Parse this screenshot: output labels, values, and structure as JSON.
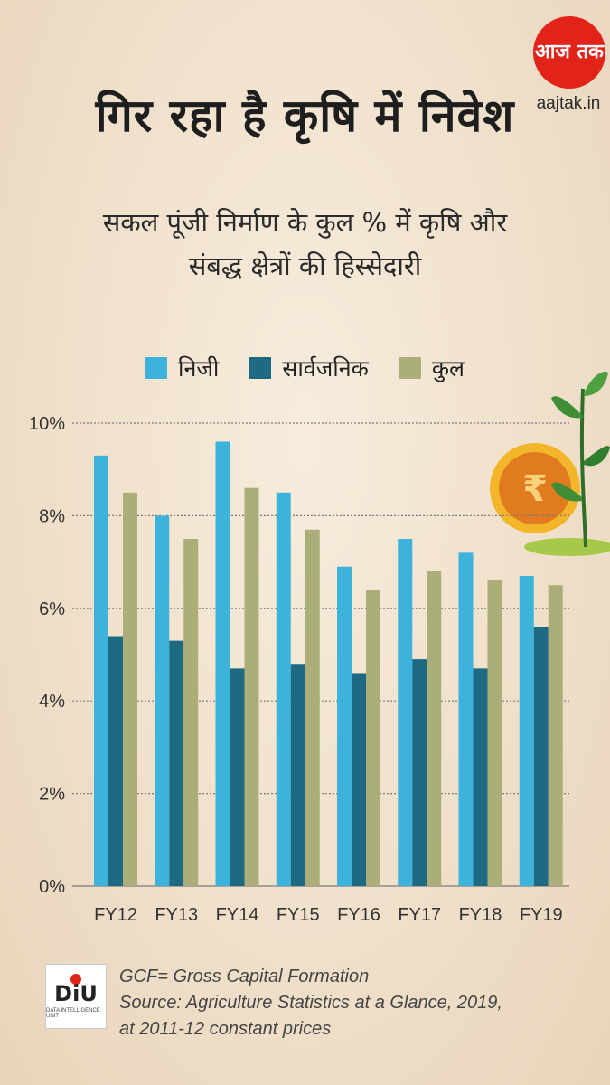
{
  "logo": {
    "brand": "आज तक",
    "url": "aajtak.in"
  },
  "title": "गिर रहा है कृषि में निवेश",
  "subtitle_lines": [
    "सकल पूंजी निर्माण के कुल % में कृषि और",
    "संबद्ध क्षेत्रों की हिस्सेदारी"
  ],
  "legend": [
    {
      "label": "निजी",
      "color": "#3db3dc"
    },
    {
      "label": "सार्वजनिक",
      "color": "#1e6a82"
    },
    {
      "label": "कुल",
      "color": "#abae78"
    }
  ],
  "chart_data": {
    "type": "bar",
    "categories": [
      "FY12",
      "FY13",
      "FY14",
      "FY15",
      "FY16",
      "FY17",
      "FY18",
      "FY19"
    ],
    "series": [
      {
        "name": "निजी",
        "color": "#3db3dc",
        "values": [
          9.3,
          8.0,
          9.6,
          8.5,
          6.9,
          7.5,
          7.2,
          6.7
        ]
      },
      {
        "name": "सार्वजनिक",
        "color": "#1e6a82",
        "values": [
          5.4,
          5.3,
          4.7,
          4.8,
          4.6,
          4.9,
          4.7,
          5.6
        ]
      },
      {
        "name": "कुल",
        "color": "#abae78",
        "values": [
          8.5,
          7.5,
          8.6,
          7.7,
          6.4,
          6.8,
          6.6,
          6.5
        ]
      }
    ],
    "yticks": [
      "0%",
      "2%",
      "4%",
      "6%",
      "8%",
      "10%"
    ],
    "ylim": [
      0,
      10
    ],
    "grid": true,
    "legend_position": "top"
  },
  "footer": {
    "diu_label": "DiU",
    "diu_sub": "DATA INTELLIGENCE UNIT",
    "lines": [
      "GCF= Gross Capital Formation",
      "Source: Agriculture Statistics at a Glance, 2019,",
      "at 2011-12 constant prices"
    ]
  },
  "decor": {
    "coin_symbol": "₹"
  }
}
